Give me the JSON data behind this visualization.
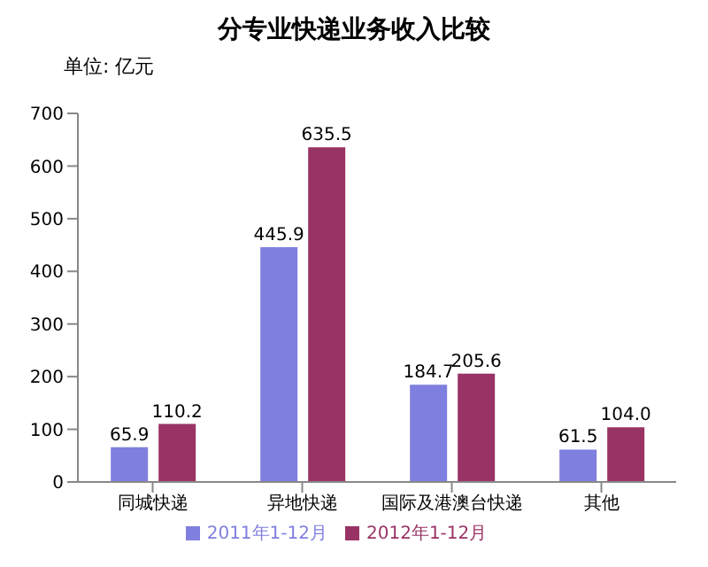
{
  "chart_data": {
    "type": "bar",
    "title": "分专业快递业务收入比较",
    "ylabel": "单位: 亿元",
    "categories": [
      "同城快递",
      "异地快递",
      "国际及港澳台快递",
      "其他"
    ],
    "series": [
      {
        "name": "2011年1-12月",
        "color": "#7f7fdf",
        "values": [
          65.9,
          445.9,
          184.7,
          61.5
        ],
        "value_labels": [
          "65.9",
          "445.9",
          "184.7",
          "61.5"
        ]
      },
      {
        "name": "2012年1-12月",
        "color": "#993366",
        "values": [
          110.2,
          635.5,
          205.6,
          104.0
        ],
        "value_labels": [
          "110.2",
          "635.5",
          "205.6",
          "104.0"
        ]
      }
    ],
    "ylim": [
      0,
      700
    ],
    "yticks": [
      0,
      100,
      200,
      300,
      400,
      500,
      600,
      700
    ],
    "legend": "bottom"
  }
}
